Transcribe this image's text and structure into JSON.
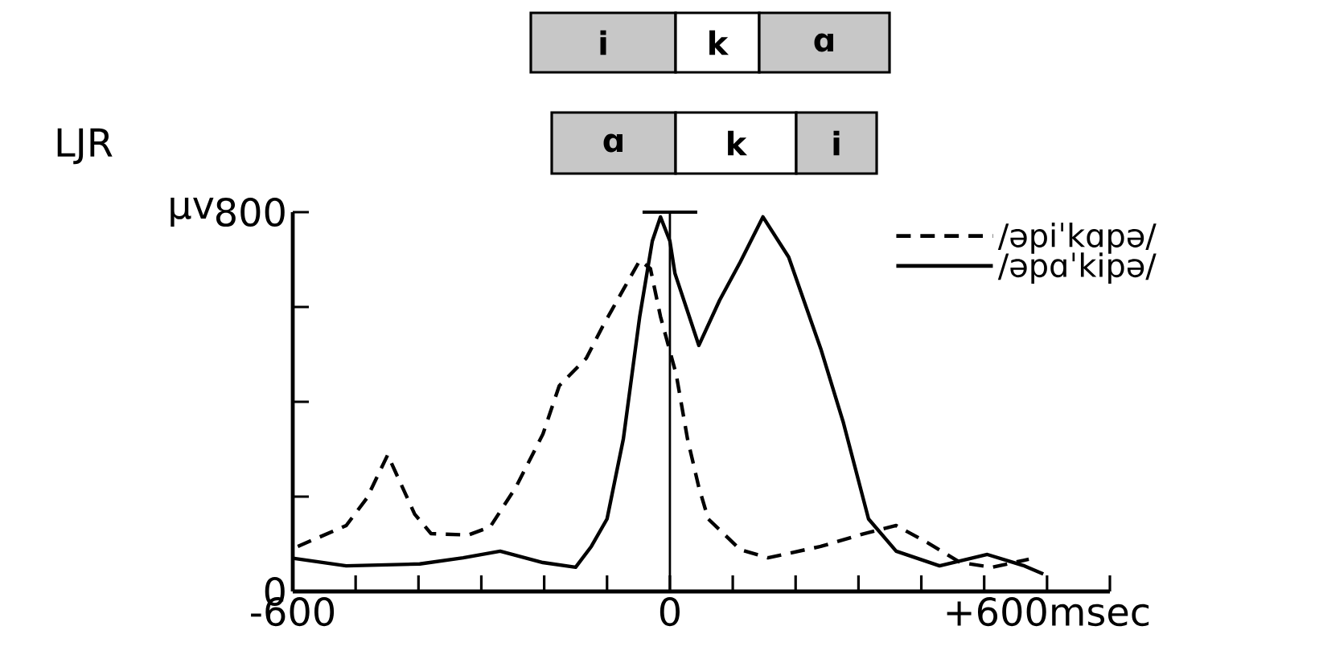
{
  "chart_data": {
    "type": "line",
    "title": "LJR",
    "annotations": [
      "i",
      "k",
      "ɑ",
      "ɑ",
      "k",
      "i"
    ],
    "xlim": [
      -600,
      700
    ],
    "xticks": [
      -600,
      {
        "value": -500,
        "label": null
      },
      {
        "value": -400,
        "label": null
      },
      {
        "value": -300,
        "label": null
      },
      {
        "value": -200,
        "label": null
      },
      {
        "value": -100,
        "label": null
      },
      0,
      {
        "value": 100,
        "label": null
      },
      {
        "value": 200,
        "label": null
      },
      {
        "value": 300,
        "label": null
      },
      {
        "value": 400,
        "label": null
      },
      {
        "value": 500,
        "label": null
      },
      {
        "value": 600,
        "label": "+600msec"
      },
      {
        "value": 700,
        "label": null
      }
    ],
    "ylim": [
      0,
      800
    ],
    "yticks": [
      0,
      {
        "value": 200,
        "label": null
      },
      {
        "value": 400,
        "label": null
      },
      {
        "value": 600,
        "label": null
      },
      800
    ],
    "ylabel": "μv",
    "ref_lines": [
      {
        "axis": "x",
        "value": 0
      }
    ],
    "legend": "top right",
    "series": [
      {
        "name": "/əpiˈkɑpə/",
        "color": "#000000",
        "line_style": "dashed",
        "x": [
          -592,
          -515,
          -482,
          -449,
          -406,
          -380,
          -321,
          -286,
          -245,
          -202,
          -176,
          -133,
          -107,
          -74,
          -48,
          -31,
          -15,
          10,
          28,
          46,
          61,
          112,
          156,
          240,
          309,
          360,
          411,
          462,
          513,
          571
        ],
        "values": [
          95,
          139,
          197,
          288,
          163,
          122,
          119,
          136,
          220,
          332,
          434,
          492,
          559,
          637,
          698,
          681,
          580,
          458,
          322,
          220,
          153,
          88,
          71,
          95,
          122,
          139,
          102,
          61,
          51,
          68
        ]
      },
      {
        "name": "/əpɑˈkipə/",
        "color": "#000000",
        "line_style": "solid",
        "x": [
          -600,
          -515,
          -398,
          -329,
          -270,
          -202,
          -150,
          -125,
          -100,
          -74,
          -48,
          -28,
          -15,
          0,
          8,
          46,
          79,
          112,
          148,
          189,
          240,
          276,
          316,
          360,
          429,
          505,
          564,
          594
        ],
        "values": [
          70,
          54,
          58,
          71,
          85,
          61,
          51,
          95,
          153,
          322,
          580,
          739,
          790,
          739,
          671,
          519,
          614,
          695,
          790,
          705,
          512,
          356,
          153,
          85,
          54,
          78,
          54,
          37
        ]
      }
    ]
  }
}
